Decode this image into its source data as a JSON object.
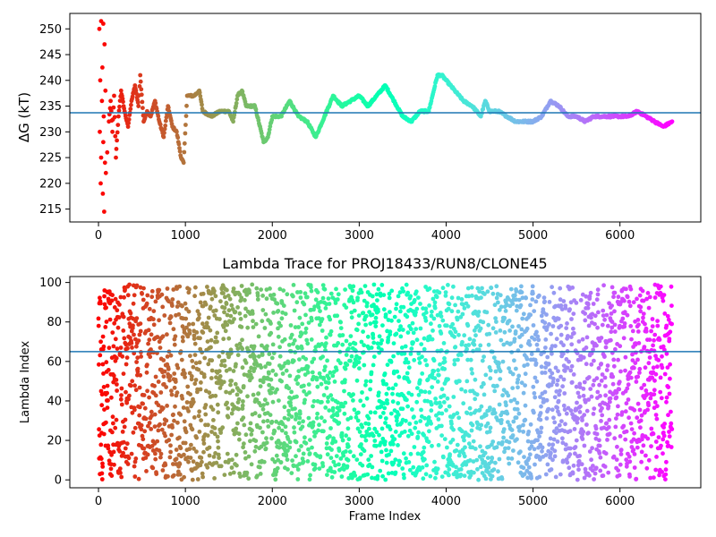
{
  "chart_data": [
    {
      "type": "scatter",
      "title": "",
      "xlabel": "",
      "ylabel": "ΔG (kT)",
      "xlim": [
        -330,
        6930
      ],
      "ylim": [
        212.5,
        253
      ],
      "xticks": [
        0,
        1000,
        2000,
        3000,
        4000,
        5000,
        6000
      ],
      "yticks": [
        215,
        220,
        225,
        230,
        235,
        240,
        245,
        250
      ],
      "hline": 233.7,
      "hline_color": "#1f77b4",
      "colormap": "rainbow (color runs red at frame 0 to violet at frame 6600)",
      "series": [
        {
          "points": [
            [
              10,
              250
            ],
            [
              30,
              251.5
            ],
            [
              55,
              251
            ],
            [
              20,
              240
            ],
            [
              45,
              242.5
            ],
            [
              70,
              247
            ],
            [
              15,
              230
            ],
            [
              40,
              236
            ],
            [
              60,
              233
            ],
            [
              80,
              238
            ],
            [
              25,
              220
            ],
            [
              50,
              218
            ],
            [
              65,
              214.5
            ],
            [
              85,
              222
            ],
            [
              30,
              225
            ],
            [
              55,
              228
            ],
            [
              75,
              224
            ],
            [
              100,
              226
            ],
            [
              120,
              232
            ],
            [
              140,
              236
            ],
            [
              160,
              230
            ],
            [
              180,
              237
            ],
            [
              200,
              225
            ],
            [
              230,
              233
            ],
            [
              260,
              238
            ],
            [
              300,
              234
            ],
            [
              340,
              231
            ],
            [
              380,
              236
            ],
            [
              420,
              239
            ],
            [
              460,
              235
            ],
            [
              480,
              241
            ],
            [
              520,
              232
            ],
            [
              560,
              234
            ],
            [
              600,
              233
            ],
            [
              650,
              236
            ],
            [
              700,
              232
            ],
            [
              750,
              229
            ],
            [
              800,
              235
            ],
            [
              850,
              231
            ],
            [
              900,
              230
            ],
            [
              950,
              225
            ],
            [
              980,
              224
            ],
            [
              1020,
              237
            ],
            [
              1100,
              237
            ],
            [
              1160,
              238
            ],
            [
              1200,
              234
            ],
            [
              1300,
              233
            ],
            [
              1400,
              234
            ],
            [
              1500,
              234
            ],
            [
              1550,
              232
            ],
            [
              1600,
              237
            ],
            [
              1650,
              238
            ],
            [
              1700,
              235
            ],
            [
              1800,
              235
            ],
            [
              1900,
              228
            ],
            [
              1950,
              229
            ],
            [
              2000,
              233
            ],
            [
              2100,
              233
            ],
            [
              2200,
              236
            ],
            [
              2300,
              233
            ],
            [
              2400,
              232
            ],
            [
              2500,
              229
            ],
            [
              2600,
              233
            ],
            [
              2700,
              237
            ],
            [
              2800,
              235
            ],
            [
              2900,
              236
            ],
            [
              3000,
              237
            ],
            [
              3100,
              235
            ],
            [
              3200,
              237
            ],
            [
              3300,
              239
            ],
            [
              3400,
              236
            ],
            [
              3500,
              233
            ],
            [
              3600,
              232
            ],
            [
              3700,
              234
            ],
            [
              3800,
              234
            ],
            [
              3900,
              241
            ],
            [
              3950,
              241
            ],
            [
              4000,
              240
            ],
            [
              4100,
              238
            ],
            [
              4200,
              236
            ],
            [
              4300,
              235
            ],
            [
              4400,
              233
            ],
            [
              4450,
              236
            ],
            [
              4500,
              234
            ],
            [
              4600,
              234
            ],
            [
              4700,
              233
            ],
            [
              4800,
              232
            ],
            [
              4900,
              232
            ],
            [
              5000,
              232
            ],
            [
              5100,
              233
            ],
            [
              5200,
              236
            ],
            [
              5300,
              235
            ],
            [
              5400,
              233
            ],
            [
              5500,
              233
            ],
            [
              5600,
              232
            ],
            [
              5700,
              233
            ],
            [
              5800,
              233
            ],
            [
              5900,
              233
            ],
            [
              6000,
              233
            ],
            [
              6100,
              233
            ],
            [
              6200,
              234
            ],
            [
              6300,
              233
            ],
            [
              6400,
              232
            ],
            [
              6500,
              231
            ],
            [
              6600,
              232
            ]
          ]
        }
      ]
    },
    {
      "type": "scatter",
      "title": "Lambda Trace for PROJ18433/RUN8/CLONE45",
      "xlabel": "Frame Index",
      "ylabel": "Lambda Index",
      "xlim": [
        -330,
        6930
      ],
      "ylim": [
        -4,
        103
      ],
      "xticks": [
        0,
        1000,
        2000,
        3000,
        4000,
        5000,
        6000
      ],
      "yticks": [
        0,
        20,
        40,
        60,
        80,
        100
      ],
      "hline": 65,
      "hline_color": "#1f77b4",
      "colormap": "rainbow (color runs red at frame 0 to violet at frame 6600)",
      "x_range_data": [
        0,
        6600
      ],
      "y_range_data": [
        0,
        99
      ],
      "points_count_approx": 3300
    }
  ]
}
